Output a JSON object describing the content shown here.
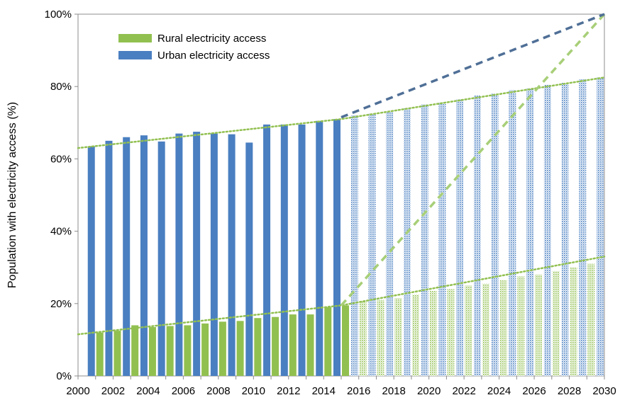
{
  "chart_data": {
    "type": "bar",
    "title": "",
    "xlabel": "",
    "ylabel": "Population with electricity access (%)",
    "ylim": [
      0,
      100
    ],
    "y_ticks": [
      "0%",
      "20%",
      "40%",
      "60%",
      "80%",
      "100%"
    ],
    "x_tick_labels": [
      "2000",
      "2002",
      "2004",
      "2006",
      "2008",
      "2010",
      "2012",
      "2014",
      "2016",
      "2018",
      "2020",
      "2022",
      "2024",
      "2026",
      "2028",
      "2030"
    ],
    "grid": false,
    "legend_position": "top-left",
    "x": [
      2000,
      2001,
      2002,
      2003,
      2004,
      2005,
      2006,
      2007,
      2008,
      2009,
      2010,
      2011,
      2012,
      2013,
      2014,
      2015,
      2016,
      2017,
      2018,
      2019,
      2020,
      2021,
      2022,
      2023,
      2024,
      2025,
      2026,
      2027,
      2028,
      2029,
      2030
    ],
    "historical_until": 2015,
    "series": [
      {
        "name": "Rural electricity access",
        "color": "#92c050",
        "values": [
          null,
          12,
          12.5,
          14,
          13.5,
          13.8,
          14,
          14.5,
          15,
          15.2,
          16,
          16.3,
          17,
          17,
          19,
          19.5,
          20.5,
          21,
          21.5,
          22.5,
          23.5,
          24,
          25,
          25.5,
          26.5,
          27.5,
          28,
          29,
          30,
          31,
          32
        ]
      },
      {
        "name": "Urban electricity access",
        "color": "#4a7fc1",
        "values": [
          63,
          63.5,
          65,
          66,
          66.5,
          64.8,
          67,
          67.5,
          67,
          66.8,
          64.5,
          69.5,
          69.5,
          69.5,
          70.5,
          71,
          72,
          72.5,
          73,
          74,
          75,
          75.5,
          76.5,
          77.5,
          78,
          79,
          79.5,
          80.5,
          81,
          82,
          82.5
        ]
      }
    ],
    "trend_lines": [
      {
        "series": "Rural electricity access",
        "style": "dotted",
        "color": "#92c050",
        "points": [
          [
            2000,
            11.5
          ],
          [
            2015,
            19.5
          ],
          [
            2030,
            33
          ]
        ]
      },
      {
        "series": "Urban electricity access",
        "style": "dotted",
        "color": "#92c050",
        "points": [
          [
            2000,
            63
          ],
          [
            2015,
            71
          ],
          [
            2030,
            82.5
          ]
        ]
      },
      {
        "series": "Rural electricity access",
        "style": "dashed",
        "color": "#a8cf78",
        "points": [
          [
            2015,
            19.5
          ],
          [
            2030,
            100
          ]
        ]
      },
      {
        "series": "Urban electricity access",
        "style": "dashed",
        "color": "#4f6f96",
        "points": [
          [
            2015,
            71.5
          ],
          [
            2030,
            100
          ]
        ]
      }
    ]
  }
}
